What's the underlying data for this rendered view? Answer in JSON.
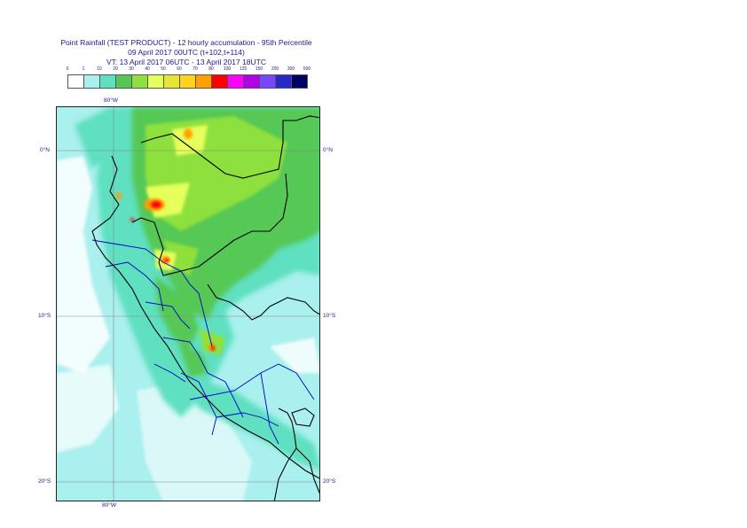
{
  "title": {
    "line1": "Point Rainfall (TEST PRODUCT) - 12 hourly accumulation - 95th Percentile",
    "line2": "09 April 2017 00UTC (t+102,t+114)",
    "line3": "VT: 13 April 2017 06UTC - 13 April 2017 18UTC"
  },
  "legend": {
    "ticks": [
      "0",
      "1",
      "10",
      "20",
      "30",
      "40",
      "50",
      "60",
      "70",
      "80",
      "100",
      "125",
      "150",
      "200",
      "300",
      "500"
    ],
    "colors": [
      "#ffffff",
      "#aaf0ee",
      "#5fe0c0",
      "#54c854",
      "#8ee03c",
      "#e6ff5a",
      "#e6e632",
      "#ffd21e",
      "#ffa000",
      "#ff0000",
      "#ff00ff",
      "#b400e6",
      "#7846ff",
      "#2828c8",
      "#000064"
    ]
  },
  "map": {
    "lon_labels_top": [
      "80°W"
    ],
    "lon_labels_bottom": [
      "80°W"
    ],
    "lat_labels_left": [
      "0°N",
      "10°S",
      "20°S"
    ],
    "lat_labels_right": [
      "0°N",
      "10°S",
      "20°S"
    ],
    "colors": {
      "ocean": "#aaf0ee",
      "light_green": "#5fe0c0",
      "green": "#54c854",
      "lime": "#8ee03c",
      "yellow": "#e6ff5a",
      "orange": "#ffa000",
      "red": "#ff0000",
      "border": "#000000",
      "admin": "#0000cc"
    }
  }
}
